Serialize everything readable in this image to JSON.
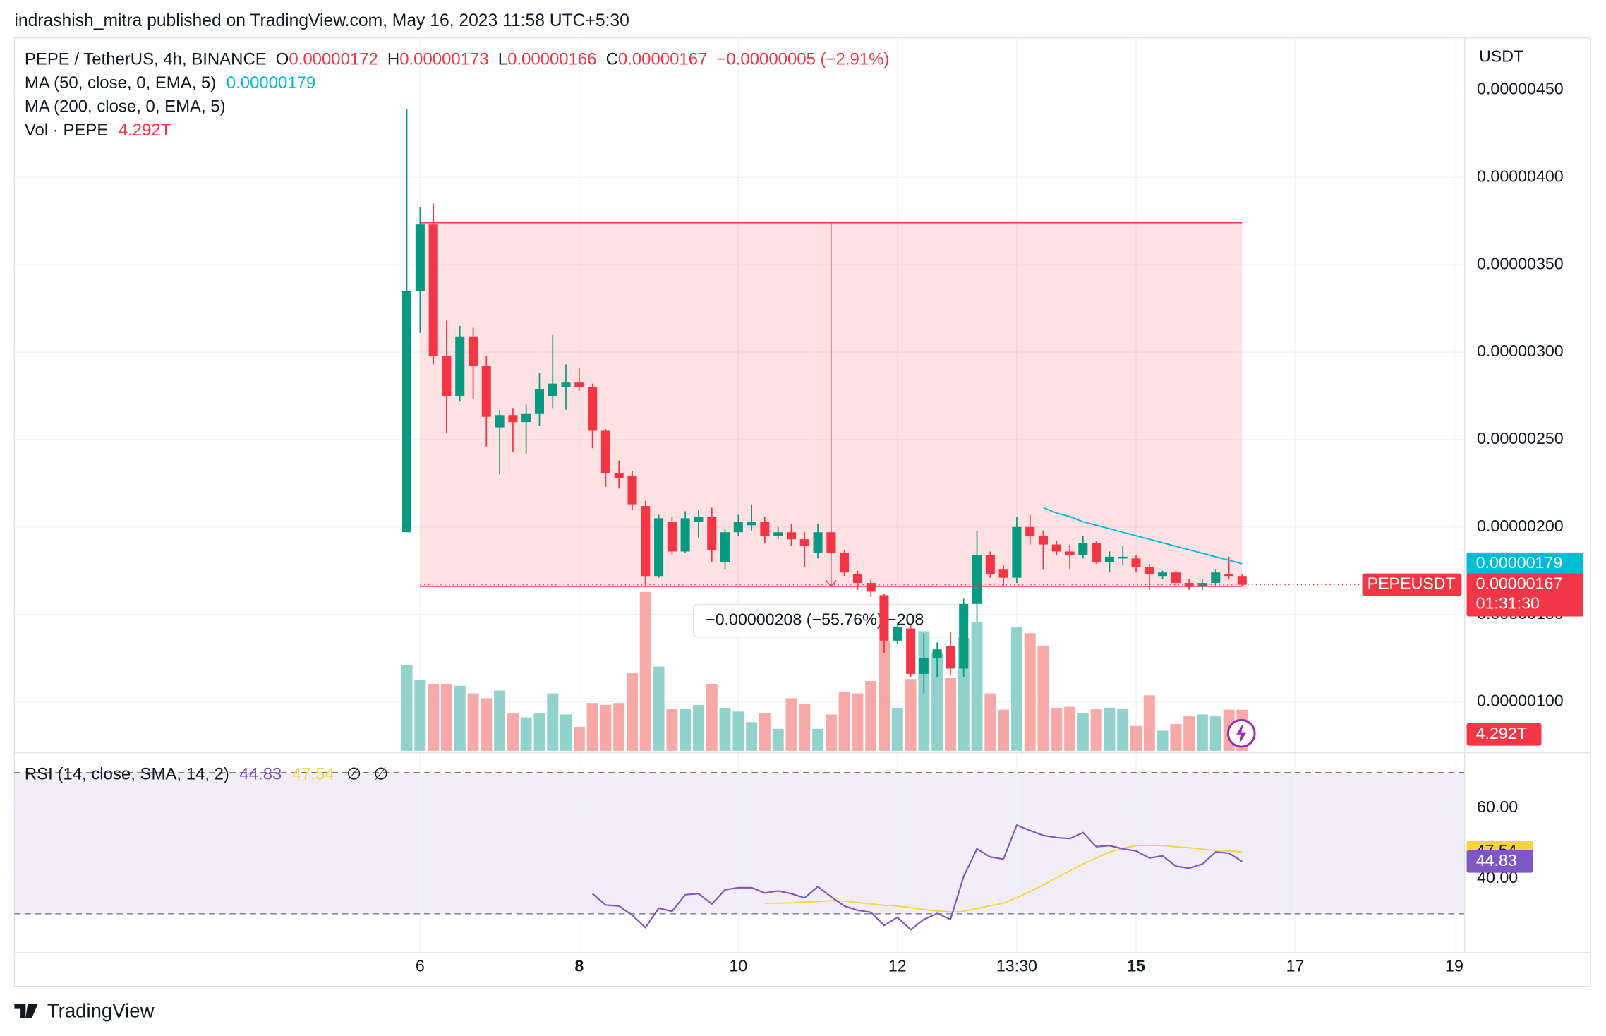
{
  "header": "indrashish_mitra published on TradingView.com, May 16, 2023 11:58 UTC+5:30",
  "footer": "TradingView",
  "chart_data": {
    "type": "candlestick",
    "title": "PEPE / TetherUS, 4h, BINANCE",
    "ohlc_letters": [
      "O",
      "H",
      "L",
      "C"
    ],
    "change": "−0.00000005 (−2.91%)",
    "price_unit": "USDT",
    "symbol": "PEPEUSDT",
    "countdown": "01:31:30",
    "up_color": "#089981",
    "down_color": "#f23645",
    "grid": true,
    "xlim": [
      0.9,
      19.13
    ],
    "xticks": [
      6,
      8,
      10,
      12,
      {
        "value": 13.5,
        "label": "13:30"
      },
      15,
      17,
      19
    ],
    "ylim": [
      7.2e-07,
      4.78e-06
    ],
    "yticks": [
      {
        "value": 1e-06,
        "label": "0.00000100"
      },
      {
        "value": 1.5e-06,
        "label": "0.00000150"
      },
      {
        "value": 2e-06,
        "label": "0.00000200"
      },
      {
        "value": 2.5e-06,
        "label": "0.00000250"
      },
      {
        "value": 3e-06,
        "label": "0.00000300"
      },
      {
        "value": 3.5e-06,
        "label": "0.00000350"
      },
      {
        "value": 4e-06,
        "label": "0.00000400"
      },
      {
        "value": 4.5e-06,
        "label": "0.00000450"
      }
    ],
    "x": [
      5.833,
      6,
      6.167,
      6.333,
      6.5,
      6.667,
      6.833,
      7,
      7.167,
      7.333,
      7.5,
      7.667,
      7.833,
      8,
      8.167,
      8.333,
      8.5,
      8.667,
      8.833,
      9,
      9.167,
      9.333,
      9.5,
      9.667,
      9.833,
      10,
      10.167,
      10.333,
      10.5,
      10.667,
      10.833,
      11,
      11.167,
      11.333,
      11.5,
      11.667,
      11.833,
      12,
      12.167,
      12.333,
      12.5,
      12.667,
      12.833,
      13,
      13.167,
      13.333,
      13.5,
      13.667,
      13.833,
      14,
      14.167,
      14.333,
      14.5,
      14.667,
      14.833,
      15,
      15.167,
      15.333,
      15.5,
      15.667,
      15.833,
      16,
      16.167,
      16.333
    ],
    "open": [
      1.97e-06,
      3.35e-06,
      3.73e-06,
      2.98e-06,
      2.75e-06,
      3.09e-06,
      2.92e-06,
      2.57e-06,
      2.64e-06,
      2.6e-06,
      2.65e-06,
      2.75e-06,
      2.8e-06,
      2.83e-06,
      2.8e-06,
      2.55e-06,
      2.31e-06,
      2.29e-06,
      2.12e-06,
      1.72e-06,
      2.03e-06,
      1.86e-06,
      2.03e-06,
      2.06e-06,
      1.8e-06,
      1.97e-06,
      2.01e-06,
      2.03e-06,
      1.95e-06,
      1.97e-06,
      1.93e-06,
      1.85e-06,
      1.97e-06,
      1.85e-06,
      1.73e-06,
      1.68e-06,
      1.61e-06,
      1.35e-06,
      1.42e-06,
      1.16e-06,
      1.25e-06,
      1.32e-06,
      1.19e-06,
      1.56e-06,
      1.84e-06,
      1.76e-06,
      1.71e-06,
      2e-06,
      1.95e-06,
      1.9e-06,
      1.86e-06,
      1.84e-06,
      1.91e-06,
      1.8e-06,
      1.82e-06,
      1.82e-06,
      1.77e-06,
      1.72e-06,
      1.74e-06,
      1.68e-06,
      1.66e-06,
      1.68e-06,
      1.73e-06,
      1.72e-06
    ],
    "high": [
      4.39e-06,
      3.83e-06,
      3.85e-06,
      3.18e-06,
      3.15e-06,
      3.14e-06,
      2.98e-06,
      2.67e-06,
      2.68e-06,
      2.7e-06,
      2.88e-06,
      3.1e-06,
      2.93e-06,
      2.91e-06,
      2.82e-06,
      2.56e-06,
      2.38e-06,
      2.32e-06,
      2.15e-06,
      2.07e-06,
      2.06e-06,
      2.09e-06,
      2.1e-06,
      2.11e-06,
      1.99e-06,
      2.07e-06,
      2.13e-06,
      2.06e-06,
      2e-06,
      2.02e-06,
      1.97e-06,
      2.02e-06,
      1.98e-06,
      1.87e-06,
      1.75e-06,
      1.7e-06,
      1.62e-06,
      1.45e-06,
      1.44e-06,
      1.39e-06,
      1.34e-06,
      1.4e-06,
      1.59e-06,
      1.98e-06,
      1.86e-06,
      1.78e-06,
      2.06e-06,
      2.07e-06,
      1.98e-06,
      1.92e-06,
      1.9e-06,
      1.95e-06,
      1.92e-06,
      1.86e-06,
      1.89e-06,
      1.84e-06,
      1.79e-06,
      1.75e-06,
      1.75e-06,
      1.7e-06,
      1.7e-06,
      1.76e-06,
      1.83e-06,
      1.73e-06
    ],
    "low": [
      1.97e-06,
      3.11e-06,
      2.93e-06,
      2.54e-06,
      2.72e-06,
      2.73e-06,
      2.46e-06,
      2.3e-06,
      2.43e-06,
      2.42e-06,
      2.58e-06,
      2.68e-06,
      2.67e-06,
      2.78e-06,
      2.45e-06,
      2.23e-06,
      2.22e-06,
      2.1e-06,
      1.66e-06,
      1.71e-06,
      1.84e-06,
      1.85e-06,
      1.94e-06,
      1.8e-06,
      1.76e-06,
      1.95e-06,
      1.98e-06,
      1.91e-06,
      1.93e-06,
      1.89e-06,
      1.77e-06,
      1.82e-06,
      1.84e-06,
      1.72e-06,
      1.64e-06,
      1.6e-06,
      1.28e-06,
      1.33e-06,
      1.14e-06,
      1.05e-06,
      1.14e-06,
      1.15e-06,
      1.14e-06,
      1.46e-06,
      1.71e-06,
      1.66e-06,
      1.68e-06,
      1.9e-06,
      1.76e-06,
      1.84e-06,
      1.76e-06,
      1.82e-06,
      1.79e-06,
      1.74e-06,
      1.78e-06,
      1.74e-06,
      1.64e-06,
      1.7e-06,
      1.66e-06,
      1.64e-06,
      1.64e-06,
      1.66e-06,
      1.7e-06,
      1.66e-06
    ],
    "close": [
      3.35e-06,
      3.73e-06,
      2.98e-06,
      2.75e-06,
      3.09e-06,
      2.92e-06,
      2.63e-06,
      2.64e-06,
      2.6e-06,
      2.65e-06,
      2.79e-06,
      2.82e-06,
      2.83e-06,
      2.8e-06,
      2.55e-06,
      2.31e-06,
      2.28e-06,
      2.13e-06,
      1.72e-06,
      2.05e-06,
      1.86e-06,
      2.05e-06,
      2.06e-06,
      1.87e-06,
      1.97e-06,
      2.03e-06,
      2.03e-06,
      1.95e-06,
      1.97e-06,
      1.93e-06,
      1.89e-06,
      1.97e-06,
      1.85e-06,
      1.74e-06,
      1.68e-06,
      1.63e-06,
      1.35e-06,
      1.43e-06,
      1.16e-06,
      1.25e-06,
      1.3e-06,
      1.19e-06,
      1.56e-06,
      1.84e-06,
      1.73e-06,
      1.71e-06,
      2e-06,
      1.95e-06,
      1.9e-06,
      1.86e-06,
      1.84e-06,
      1.91e-06,
      1.8e-06,
      1.83e-06,
      1.83e-06,
      1.77e-06,
      1.73e-06,
      1.74e-06,
      1.68e-06,
      1.66e-06,
      1.68e-06,
      1.74e-06,
      1.72e-06,
      1.67e-06
    ],
    "ma": [
      {
        "name": "MA (50, close, 0, EMA, 5)",
        "color": "#00bcd4",
        "values": [
          null,
          null,
          null,
          null,
          null,
          null,
          null,
          null,
          null,
          null,
          null,
          null,
          null,
          null,
          null,
          null,
          null,
          null,
          null,
          null,
          null,
          null,
          null,
          null,
          null,
          null,
          null,
          null,
          null,
          null,
          null,
          null,
          null,
          null,
          null,
          null,
          null,
          null,
          null,
          null,
          null,
          null,
          null,
          null,
          null,
          null,
          null,
          null,
          2.11e-06,
          2.08e-06,
          2.06e-06,
          2.03e-06,
          2.01e-06,
          1.99e-06,
          1.97e-06,
          1.95e-06,
          1.93e-06,
          1.91e-06,
          1.89e-06,
          1.87e-06,
          1.85e-06,
          1.83e-06,
          1.81e-06,
          1.79e-06
        ]
      },
      {
        "name": "MA (200, close, 0, EMA, 5)"
      }
    ],
    "volume": {
      "name": "Vol · PEPE",
      "up_color": "#92d2cc",
      "down_color": "#f7a9a7",
      "values": [
        9.0,
        7.4,
        7.0,
        7.0,
        6.8,
        6.0,
        5.5,
        6.3,
        3.9,
        3.5,
        3.9,
        6.0,
        3.8,
        2.5,
        5.0,
        4.8,
        5.0,
        8.1,
        16.6,
        8.8,
        4.4,
        4.4,
        4.8,
        7.0,
        4.5,
        4.1,
        3.0,
        3.9,
        2.3,
        5.5,
        4.9,
        2.3,
        3.8,
        6.2,
        6.0,
        7.3,
        11.5,
        4.5,
        7.5,
        12.5,
        10.2,
        7.6,
        11.8,
        13.5,
        6.0,
        4.3,
        12.9,
        12.3,
        11.0,
        4.5,
        4.6,
        3.9,
        4.4,
        4.5,
        4.4,
        2.6,
        5.8,
        2.1,
        2.8,
        3.6,
        3.8,
        3.6,
        4.3,
        4.292
      ],
      "value_labels": [
        null,
        null,
        null,
        null,
        null,
        null,
        null,
        null,
        null,
        null,
        null,
        null,
        null,
        null,
        null,
        null,
        null,
        null,
        null,
        null,
        null,
        null,
        null,
        null,
        null,
        null,
        null,
        null,
        null,
        null,
        null,
        null,
        null,
        null,
        null,
        null,
        null,
        null,
        null,
        null,
        null,
        null,
        null,
        null,
        null,
        null,
        null,
        null,
        null,
        null,
        null,
        null,
        null,
        null,
        null,
        null,
        null,
        null,
        null,
        null,
        null,
        null,
        null,
        "4.292T"
      ]
    },
    "measure": {
      "label": "−0.00000208 (−55.76%) −208",
      "from": 3.74e-06,
      "to": 1.66e-06,
      "x_from": 6,
      "x_to": 16.333,
      "color": "#f23645"
    },
    "rsi": {
      "name": "RSI (14, close, SMA, 14, 2)",
      "color": "#7e57c2",
      "extras": [
        "∅",
        "∅"
      ],
      "ylim": [
        19,
        75
      ],
      "yticks": [
        {
          "value": 60,
          "label": "60.00"
        },
        {
          "value": 40,
          "label": "40.00"
        }
      ],
      "band": [
        30,
        70
      ],
      "values": [
        null,
        null,
        null,
        null,
        null,
        null,
        null,
        null,
        null,
        null,
        null,
        null,
        null,
        null,
        35.7,
        32.5,
        32.2,
        29.6,
        26.1,
        31.6,
        30.7,
        35.4,
        35.7,
        32.8,
        36.8,
        37.4,
        37.4,
        35.9,
        36.5,
        35.7,
        34.5,
        37.7,
        34.8,
        32.2,
        31.0,
        30.4,
        26.7,
        29.0,
        25.5,
        28.4,
        30.1,
        28.4,
        40.6,
        48.4,
        46.1,
        45.5,
        55.1,
        53.6,
        52.2,
        51.6,
        51.3,
        53.0,
        49.0,
        49.3,
        48.4,
        47.8,
        45.8,
        46.4,
        43.5,
        42.9,
        44.1,
        47.5,
        47.2,
        44.83
      ],
      "sma": {
        "color": "#f5d33f",
        "values": [
          null,
          null,
          null,
          null,
          null,
          null,
          null,
          null,
          null,
          null,
          null,
          null,
          null,
          null,
          null,
          null,
          null,
          null,
          null,
          null,
          null,
          null,
          null,
          null,
          null,
          null,
          null,
          33.0,
          33.0,
          33.1,
          33.3,
          33.5,
          33.7,
          33.6,
          33.2,
          32.8,
          32.4,
          32.2,
          31.7,
          31.2,
          30.8,
          30.5,
          30.7,
          31.5,
          32.3,
          33.0,
          34.6,
          36.3,
          38.2,
          40.2,
          42.2,
          44.1,
          45.8,
          47.5,
          48.6,
          49.3,
          49.4,
          49.3,
          49.0,
          48.7,
          48.3,
          48.0,
          47.8,
          47.54
        ]
      }
    }
  }
}
